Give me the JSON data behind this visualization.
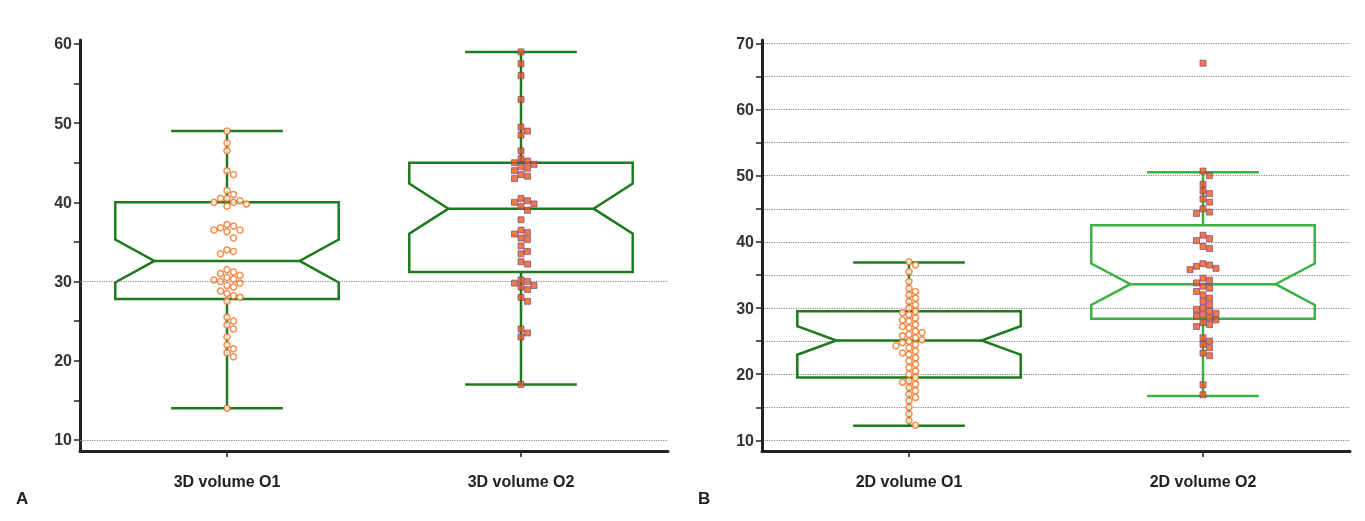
{
  "chart_data": [
    {
      "type": "box",
      "categories": [
        "3D volume O1",
        "3D volume O2"
      ],
      "ylim": [
        8.6,
        60.5
      ],
      "yticks": [
        10,
        {
          "value": 15,
          "label": null
        },
        20,
        {
          "value": 25,
          "label": null
        },
        30,
        {
          "value": 35,
          "label": null
        },
        40,
        {
          "value": 45,
          "label": null
        },
        50,
        {
          "value": 55,
          "label": null
        },
        60
      ],
      "annotations": [
        "A"
      ],
      "grid": false,
      "ref_lines": [
        {
          "axis": "y",
          "value": 10,
          "color": "#8a8a8a",
          "line_style": "dotted"
        },
        {
          "axis": "y",
          "value": 30,
          "color": "#8a8a8a",
          "line_style": "dotted"
        }
      ],
      "series": [
        {
          "type": "box",
          "colors": [
            "#1e7a1e",
            "#1e7a1e"
          ],
          "boxes": [
            {
              "low": 14,
              "q1": 27.8,
              "median": 32.6,
              "q3": 40,
              "high": 49
            },
            {
              "low": 17,
              "q1": 31.2,
              "median": 39.2,
              "q3": 45,
              "high": 59
            }
          ]
        },
        {
          "type": "scatter",
          "color": "#f07020",
          "marker": "circle",
          "x": [
            "3D volume O1",
            "3D volume O1",
            "3D volume O1",
            "3D volume O1",
            "3D volume O1",
            "3D volume O1",
            "3D volume O1",
            "3D volume O1",
            "3D volume O1",
            "3D volume O1",
            "3D volume O1",
            "3D volume O1",
            "3D volume O1",
            "3D volume O1",
            "3D volume O1",
            "3D volume O1",
            "3D volume O1",
            "3D volume O1",
            "3D volume O1",
            "3D volume O1",
            "3D volume O1",
            "3D volume O1",
            "3D volume O1",
            "3D volume O1",
            "3D volume O1",
            "3D volume O1",
            "3D volume O1",
            "3D volume O1",
            "3D volume O1",
            "3D volume O1",
            "3D volume O1",
            "3D volume O1",
            "3D volume O1",
            "3D volume O1",
            "3D volume O1",
            "3D volume O1",
            "3D volume O1",
            "3D volume O1",
            "3D volume O1",
            "3D volume O1",
            "3D volume O1",
            "3D volume O1",
            "3D volume O1",
            "3D volume O1",
            "3D volume O1",
            "3D volume O1",
            "3D volume O1",
            "3D volume O1",
            "3D volume O1",
            "3D volume O1"
          ],
          "values": [
            49,
            47.5,
            46.5,
            44,
            43.5,
            41.5,
            41,
            40.5,
            40.5,
            40.2,
            40,
            40,
            39.8,
            39.5,
            37.2,
            37,
            36.8,
            36.5,
            36.5,
            36.3,
            35.5,
            34,
            33.8,
            33.5,
            31.5,
            31.2,
            31,
            30.8,
            30.5,
            30.3,
            30.2,
            30,
            29.8,
            29.5,
            29.3,
            28.8,
            28.5,
            28.2,
            28,
            27.5,
            25.5,
            25,
            24.5,
            24,
            23,
            22,
            21.5,
            21,
            20.5,
            14
          ]
        },
        {
          "type": "scatter",
          "color": "#f05a14",
          "marker": "square",
          "x": [
            "3D volume O2",
            "3D volume O2",
            "3D volume O2",
            "3D volume O2",
            "3D volume O2",
            "3D volume O2",
            "3D volume O2",
            "3D volume O2",
            "3D volume O2",
            "3D volume O2",
            "3D volume O2",
            "3D volume O2",
            "3D volume O2",
            "3D volume O2",
            "3D volume O2",
            "3D volume O2",
            "3D volume O2",
            "3D volume O2",
            "3D volume O2",
            "3D volume O2",
            "3D volume O2",
            "3D volume O2",
            "3D volume O2",
            "3D volume O2",
            "3D volume O2",
            "3D volume O2",
            "3D volume O2",
            "3D volume O2",
            "3D volume O2",
            "3D volume O2",
            "3D volume O2",
            "3D volume O2",
            "3D volume O2",
            "3D volume O2",
            "3D volume O2",
            "3D volume O2",
            "3D volume O2",
            "3D volume O2",
            "3D volume O2",
            "3D volume O2",
            "3D volume O2",
            "3D volume O2",
            "3D volume O2",
            "3D volume O2",
            "3D volume O2",
            "3D volume O2",
            "3D volume O2"
          ],
          "values": [
            59,
            57.5,
            56,
            53,
            49.5,
            49,
            48.5,
            46.5,
            45.5,
            45.2,
            45,
            44.8,
            44.5,
            44.3,
            44,
            43.5,
            43.3,
            43,
            40.5,
            40.2,
            40,
            39.8,
            39.5,
            39,
            37.8,
            36.5,
            36.2,
            36,
            35.5,
            35.3,
            34.5,
            33.8,
            33.5,
            32.5,
            32.2,
            30.2,
            30,
            29.8,
            29.5,
            29.3,
            29,
            28,
            27.5,
            24,
            23.5,
            23,
            17
          ]
        }
      ]
    },
    {
      "type": "box",
      "categories": [
        "2D volume O1",
        "2D volume O2"
      ],
      "ylim": [
        8.4,
        70.5
      ],
      "yticks": [
        10,
        {
          "value": 15,
          "label": null
        },
        20,
        {
          "value": 25,
          "label": null
        },
        30,
        {
          "value": 35,
          "label": null
        },
        40,
        {
          "value": 45,
          "label": null
        },
        50,
        {
          "value": 55,
          "label": null
        },
        60,
        {
          "value": 65,
          "label": null
        },
        70
      ],
      "annotations": [
        "B"
      ],
      "grid": "y",
      "series": [
        {
          "type": "box",
          "colors": [
            "#1e7a1e",
            "#3cb043"
          ],
          "boxes": [
            {
              "low": 12.2,
              "q1": 19.5,
              "median": 25.1,
              "q3": 29.5,
              "high": 36.9
            },
            {
              "low": 16.7,
              "q1": 28.4,
              "median": 33.6,
              "q3": 42.5,
              "high": 50.5
            }
          ]
        },
        {
          "type": "scatter",
          "color": "#f07020",
          "marker": "circle",
          "x": [
            "2D volume O1",
            "2D volume O1",
            "2D volume O1",
            "2D volume O1",
            "2D volume O1",
            "2D volume O1",
            "2D volume O1",
            "2D volume O1",
            "2D volume O1",
            "2D volume O1",
            "2D volume O1",
            "2D volume O1",
            "2D volume O1",
            "2D volume O1",
            "2D volume O1",
            "2D volume O1",
            "2D volume O1",
            "2D volume O1",
            "2D volume O1",
            "2D volume O1",
            "2D volume O1",
            "2D volume O1",
            "2D volume O1",
            "2D volume O1",
            "2D volume O1",
            "2D volume O1",
            "2D volume O1",
            "2D volume O1",
            "2D volume O1",
            "2D volume O1",
            "2D volume O1",
            "2D volume O1",
            "2D volume O1",
            "2D volume O1",
            "2D volume O1",
            "2D volume O1",
            "2D volume O1",
            "2D volume O1",
            "2D volume O1",
            "2D volume O1",
            "2D volume O1",
            "2D volume O1",
            "2D volume O1",
            "2D volume O1",
            "2D volume O1",
            "2D volume O1",
            "2D volume O1",
            "2D volume O1",
            "2D volume O1",
            "2D volume O1",
            "2D volume O1",
            "2D volume O1",
            "2D volume O1"
          ],
          "values": [
            37,
            36.5,
            35.5,
            34,
            33,
            32.5,
            32,
            31.5,
            31,
            30.5,
            30,
            29.5,
            29.3,
            29,
            28.5,
            28.2,
            28,
            27.5,
            27.2,
            27,
            26.5,
            26.3,
            26,
            25.8,
            25.5,
            25.2,
            25,
            24.8,
            24.5,
            24.3,
            24,
            23.5,
            23.2,
            23,
            22.5,
            22,
            21.5,
            21,
            20.5,
            20,
            19.5,
            19,
            18.8,
            18.5,
            18,
            17.5,
            17,
            16.5,
            16,
            15,
            14,
            13,
            12.3
          ]
        },
        {
          "type": "scatter",
          "color": "#f05a14",
          "marker": "square",
          "x": [
            "2D volume O2",
            "2D volume O2",
            "2D volume O2",
            "2D volume O2",
            "2D volume O2",
            "2D volume O2",
            "2D volume O2",
            "2D volume O2",
            "2D volume O2",
            "2D volume O2",
            "2D volume O2",
            "2D volume O2",
            "2D volume O2",
            "2D volume O2",
            "2D volume O2",
            "2D volume O2",
            "2D volume O2",
            "2D volume O2",
            "2D volume O2",
            "2D volume O2",
            "2D volume O2",
            "2D volume O2",
            "2D volume O2",
            "2D volume O2",
            "2D volume O2",
            "2D volume O2",
            "2D volume O2",
            "2D volume O2",
            "2D volume O2",
            "2D volume O2",
            "2D volume O2",
            "2D volume O2",
            "2D volume O2",
            "2D volume O2",
            "2D volume O2",
            "2D volume O2",
            "2D volume O2",
            "2D volume O2",
            "2D volume O2",
            "2D volume O2",
            "2D volume O2",
            "2D volume O2",
            "2D volume O2",
            "2D volume O2",
            "2D volume O2",
            "2D volume O2",
            "2D volume O2",
            "2D volume O2",
            "2D volume O2",
            "2D volume O2"
          ],
          "values": [
            67,
            50.7,
            50,
            48.7,
            47.7,
            47.3,
            46.5,
            46,
            45,
            44.5,
            44.3,
            41,
            40.5,
            40.2,
            39.3,
            39,
            36.7,
            36.5,
            36.3,
            36,
            35.8,
            34.5,
            34.2,
            33.8,
            33.3,
            33,
            32.5,
            32,
            31.5,
            31,
            30.5,
            30,
            29.8,
            29.5,
            29.2,
            29,
            28.8,
            28.5,
            28.2,
            27.8,
            27.5,
            27.2,
            25.5,
            25,
            24.5,
            24,
            23.2,
            22.8,
            18.4,
            16.9
          ]
        }
      ]
    }
  ]
}
